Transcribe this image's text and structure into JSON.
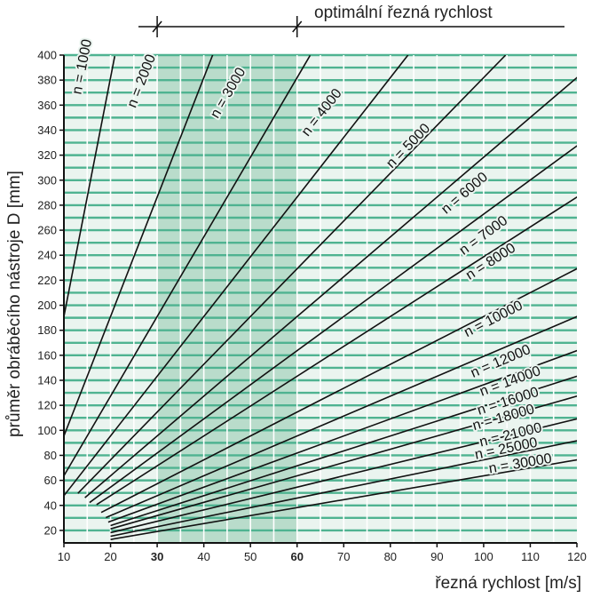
{
  "chart_data": {
    "type": "line",
    "title": "",
    "xlabel": "řezná rychlost [m/s]",
    "ylabel": "průměr obráběcího nástroje D [mm]",
    "x_ticks": [
      10,
      20,
      30,
      40,
      50,
      60,
      70,
      80,
      90,
      100,
      110,
      120
    ],
    "y_ticks": [
      20,
      40,
      60,
      80,
      100,
      120,
      140,
      160,
      180,
      200,
      220,
      240,
      260,
      280,
      300,
      320,
      340,
      360,
      380,
      400
    ],
    "xlim": [
      10,
      120
    ],
    "ylim": [
      10,
      400
    ],
    "grid": true,
    "highlight_band": {
      "x_from": 30,
      "x_to": 60,
      "label": "optimální řezná rychlost"
    },
    "series": [
      {
        "name": "n = 1000",
        "x_start": 9,
        "x_end": 20.9
      },
      {
        "name": "n = 2000",
        "x_start": 9,
        "x_end": 41.9
      },
      {
        "name": "n = 3000",
        "x_start": 9,
        "x_end": 62.8
      },
      {
        "name": "n = 4000",
        "x_start": 9.5,
        "x_end": 83.8
      },
      {
        "name": "n = 5000",
        "x_start": 13,
        "x_end": 104.7
      },
      {
        "name": "n = 6000",
        "x_start": 14.5,
        "x_end": 121
      },
      {
        "name": "n = 7000",
        "x_start": 15.5,
        "x_end": 121
      },
      {
        "name": "n = 8000",
        "x_start": 17,
        "x_end": 121
      },
      {
        "name": "n = 10000",
        "x_start": 18,
        "x_end": 121
      },
      {
        "name": "n = 12000",
        "x_start": 19,
        "x_end": 121
      },
      {
        "name": "n = 14000",
        "x_start": 19.5,
        "x_end": 121
      },
      {
        "name": "n = 16000",
        "x_start": 20,
        "x_end": 121
      },
      {
        "name": "n = 18000",
        "x_start": 20,
        "x_end": 121
      },
      {
        "name": "n = 21000",
        "x_start": 20,
        "x_end": 121
      },
      {
        "name": "n = 25000",
        "x_start": 20,
        "x_end": 121
      },
      {
        "name": "n = 30000",
        "x_start": 20,
        "x_end": 121
      }
    ],
    "series_label_positions": [
      [
        14.8,
        390
      ],
      [
        27.5,
        378
      ],
      [
        46,
        368
      ],
      [
        66,
        352
      ],
      [
        84.5,
        325
      ],
      [
        96.5,
        287
      ],
      [
        100.5,
        253
      ],
      [
        102,
        232
      ],
      [
        102.5,
        186
      ],
      [
        104,
        152
      ],
      [
        106,
        136
      ],
      [
        105.5,
        120
      ],
      [
        104.5,
        107
      ],
      [
        106,
        93
      ],
      [
        105,
        82
      ],
      [
        108,
        70
      ]
    ]
  }
}
